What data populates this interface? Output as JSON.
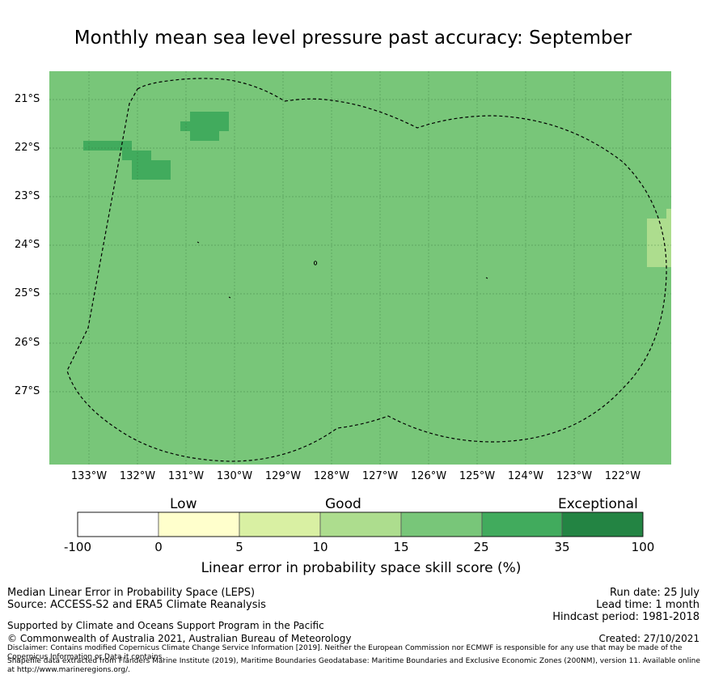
{
  "title": "Monthly mean sea level pressure past accuracy: September",
  "map": {
    "lat_labels": [
      "21°S",
      "22°S",
      "23°S",
      "24°S",
      "25°S",
      "26°S",
      "27°S"
    ],
    "lon_labels": [
      "133°W",
      "132°W",
      "131°W",
      "130°W",
      "129°W",
      "128°W",
      "127°W",
      "126°W",
      "125°W",
      "124°W",
      "123°W",
      "122°W"
    ],
    "background_color": "#78c679",
    "higher_skill_color": "#41ab5d",
    "lower_skill_color": "#addd8e",
    "boundary_style": "dashed"
  },
  "colorbar": {
    "categories": [
      "Low",
      "Good",
      "Exceptional"
    ],
    "ticks": [
      "-100",
      "0",
      "5",
      "10",
      "15",
      "25",
      "35",
      "100"
    ],
    "colors": [
      "#ffffff",
      "#ffffcc",
      "#d9f0a3",
      "#addd8e",
      "#78c679",
      "#41ab5d",
      "#238443"
    ],
    "label": "Linear error in probability space skill score (%)"
  },
  "footer": {
    "line1": "Median Linear Error in Probability Space (LEPS)",
    "line2": "Source: ACCESS-S2 and ERA5 Climate Reanalysis",
    "support": "Supported by Climate and Oceans Support Program in the Pacific",
    "copyright": "© Commonwealth of Australia 2021, Australian Bureau of Meteorology",
    "disclaimer": "Disclaimer: Contains modified Copernicus Climate Change Service Information [2019]. Neither the European Commission nor ECMWF is responsible for any use that may be made of the Copernicus Information or Data it contains.",
    "shapefile": "Shapefile data extracted from Flanders Marine Institute (2019), Maritime Boundaries Geodatabase: Maritime Boundaries and Exclusive Economic Zones (200NM), version 11. Available online at http://www.marineregions.org/.",
    "run_date": "Run date: 25 July",
    "lead_time": "Lead time: 1 month",
    "hindcast": "Hindcast period: 1981-2018",
    "created": "Created: 27/10/2021"
  }
}
